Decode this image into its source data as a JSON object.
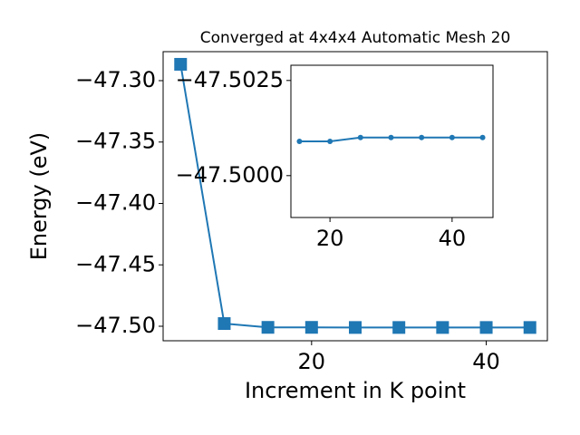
{
  "chart_data": [
    {
      "type": "line",
      "title": "Converged at 4x4x4 Automatic Mesh 20",
      "x_label": "Increment in K point",
      "y_label": "Energy (eV)",
      "x": [
        5,
        10,
        15,
        20,
        25,
        30,
        35,
        40,
        45
      ],
      "series": [
        {
          "color": "#1f77b4",
          "marker": "square",
          "values": [
            -47.2867,
            -47.4978,
            -47.5009,
            -47.5009,
            -47.501,
            -47.501,
            -47.501,
            -47.501,
            -47.501
          ]
        }
      ],
      "xlim": [
        3,
        47
      ],
      "xticks": [
        20,
        40
      ],
      "ylim": [
        -47.5118,
        -47.2764
      ],
      "yticks": [
        {
          "value": -47.5,
          "label": "−47.50"
        },
        {
          "value": -47.45,
          "label": "−47.45"
        },
        {
          "value": -47.4,
          "label": "−47.40"
        },
        {
          "value": -47.35,
          "label": "−47.35"
        },
        {
          "value": -47.3,
          "label": "−47.30"
        }
      ]
    },
    {
      "type": "line",
      "x": [
        15,
        20,
        25,
        30,
        35,
        40,
        45
      ],
      "series": [
        {
          "color": "#1f77b4",
          "marker": "circle",
          "values": [
            -47.5009,
            -47.5009,
            -47.501,
            -47.501,
            -47.501,
            -47.501,
            -47.501
          ]
        }
      ],
      "xlim": [
        13.6,
        46.7
      ],
      "xticks": [
        20,
        40
      ],
      "ylim": [
        -47.4989,
        -47.5029
      ],
      "yticks": [
        {
          "value": -47.5,
          "label": "−47.5000"
        },
        {
          "value": -47.5025,
          "label": "−47.5025"
        }
      ]
    }
  ]
}
